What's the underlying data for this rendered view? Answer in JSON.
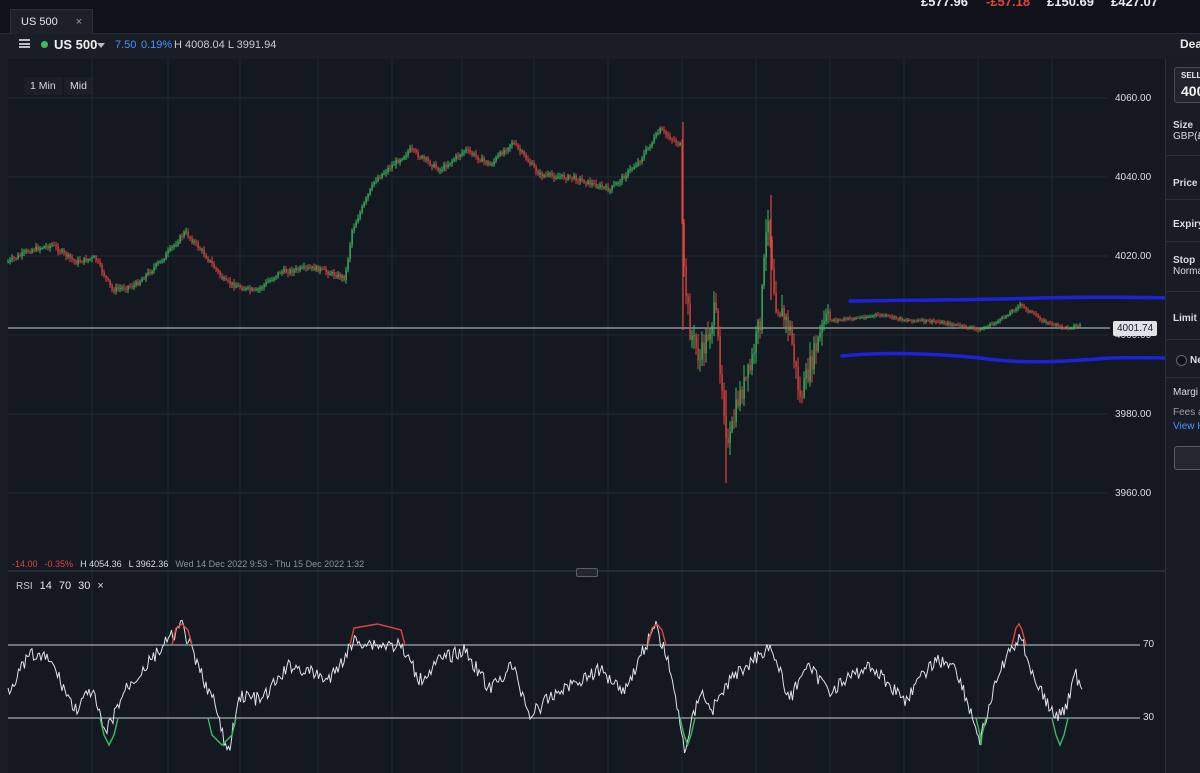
{
  "topbar": {
    "tab_label": "US 500",
    "close_symbol": "×",
    "pnl": [
      "£577.96",
      "-£57.18",
      "£150.69",
      "£427.07"
    ]
  },
  "header": {
    "instrument": "US 500",
    "change": "7.50",
    "change_pct": "0.19%",
    "high_low": "H 4008.04  L 3991.94",
    "deal_label": "Dea"
  },
  "toolbar": {
    "interval": "1 Min",
    "price_type": "Mid"
  },
  "chart": {
    "y_axis": [
      "4060.00",
      "4040.00",
      "4020.00",
      "4000.00",
      "3980.00",
      "3960.00"
    ],
    "current_price": "4001.74"
  },
  "period_stats": {
    "change": "-14.00",
    "change_pct": "-0.35%",
    "high": "H 4054.36",
    "low": "L 3962.36",
    "range": "Wed 14 Dec 2022 9:53 - Thu 15 Dec 2022 1:32"
  },
  "rsi": {
    "label": "RSI",
    "period": "14",
    "upper": "70",
    "lower": "30",
    "remove": "×",
    "y_axis": [
      "70",
      "30"
    ]
  },
  "ticket": {
    "sell_label": "SELL",
    "sell_price": "400",
    "fields": [
      "Size",
      "GBP(£",
      "Price",
      "Expiry",
      "Stop",
      "Norma",
      "Limit"
    ],
    "side_option": "Ne",
    "margin": "Margi",
    "fees": "Fees a",
    "view_link": "View H"
  },
  "colors": {
    "up": "#3dbb5e",
    "down": "#e0453d",
    "accent": "#4a90ff",
    "channel": "#1c22d8"
  }
}
